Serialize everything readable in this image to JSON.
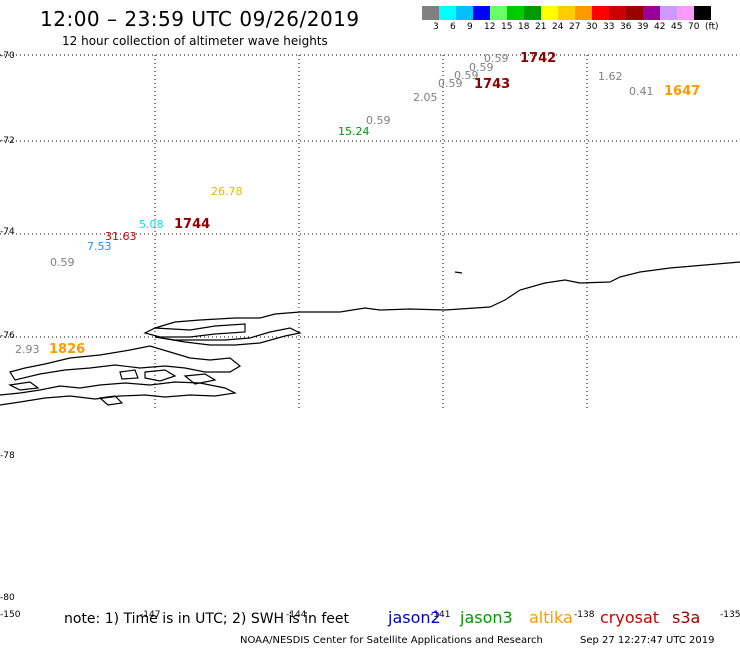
{
  "header": {
    "title": "12:00 – 23:59 UTC 09/26/2019",
    "subtitle": "12 hour collection of altimeter wave heights"
  },
  "color_scale": {
    "swatches": [
      "#808080",
      "#00ffff",
      "#00bfff",
      "#0000ff",
      "#66ff66",
      "#00cc00",
      "#009900",
      "#ffff00",
      "#ffcc00",
      "#ff9900",
      "#ff0000",
      "#cc0000",
      "#990000",
      "#990099",
      "#cc99ff",
      "#ff99ff",
      "#000000"
    ],
    "labels": [
      "3",
      "6",
      "9",
      "12",
      "15",
      "18",
      "21",
      "24",
      "27",
      "30",
      "33",
      "36",
      "39",
      "42",
      "45",
      "70",
      "(ft)"
    ]
  },
  "axes": {
    "lat_labels": [
      "-70",
      "-72",
      "-74",
      "-76",
      "-78",
      "-80"
    ],
    "lon_labels": [
      "-150",
      "-147",
      "-144",
      "-141",
      "-138",
      "-135"
    ]
  },
  "observations": [
    {
      "text": "0.59",
      "color": "#808080",
      "fs": 11
    },
    {
      "text": "1742",
      "color": "#8b0000",
      "fs": 13
    },
    {
      "text": "0.59",
      "color": "#808080",
      "fs": 11
    },
    {
      "text": "0.59",
      "color": "#808080",
      "fs": 11
    },
    {
      "text": "0.59",
      "color": "#808080",
      "fs": 11
    },
    {
      "text": "1743",
      "color": "#8b0000",
      "fs": 13
    },
    {
      "text": "1.62",
      "color": "#808080",
      "fs": 11
    },
    {
      "text": "2.05",
      "color": "#808080",
      "fs": 11
    },
    {
      "text": "0.41",
      "color": "#808080",
      "fs": 11
    },
    {
      "text": "1647",
      "color": "#ff9900",
      "fs": 13
    },
    {
      "text": "0.59",
      "color": "#808080",
      "fs": 11
    },
    {
      "text": "15.24",
      "color": "#009900",
      "fs": 11
    },
    {
      "text": "26.78",
      "color": "#e6b800",
      "fs": 11
    },
    {
      "text": "5.08",
      "color": "#00e5e5",
      "fs": 11
    },
    {
      "text": "1744",
      "color": "#8b0000",
      "fs": 13
    },
    {
      "text": "31.63",
      "color": "#cc0000",
      "fs": 11
    },
    {
      "text": "7.53",
      "color": "#1e90ff",
      "fs": 11
    },
    {
      "text": "0.59",
      "color": "#808080",
      "fs": 11
    },
    {
      "text": "2.93",
      "color": "#808080",
      "fs": 11
    },
    {
      "text": "1826",
      "color": "#ff9900",
      "fs": 13
    }
  ],
  "footer": {
    "note": "note: 1) Time is in UTC; 2) SWH is in feet",
    "satellites": [
      {
        "name": "jason2",
        "color": "#0000cc"
      },
      {
        "name": "jason3",
        "color": "#009900"
      },
      {
        "name": "altika",
        "color": "#ff9900"
      },
      {
        "name": "cryosat",
        "color": "#cc0000"
      },
      {
        "name": "s3a",
        "color": "#990000"
      }
    ],
    "credit": "NOAA/NESDIS Center for Satellite Applications and Research",
    "generated": "Sep 27 12:27:47 UTC 2019"
  }
}
